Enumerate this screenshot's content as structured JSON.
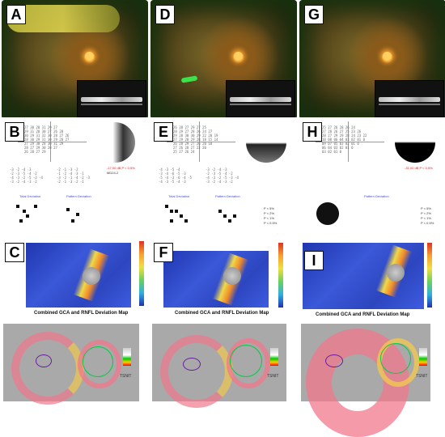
{
  "panels": [
    {
      "id": "A",
      "label": "A"
    },
    {
      "id": "D",
      "label": "D"
    },
    {
      "id": "G",
      "label": "G"
    },
    {
      "id": "B",
      "label": "B"
    },
    {
      "id": "E",
      "label": "E"
    },
    {
      "id": "H",
      "label": "H"
    },
    {
      "id": "C",
      "label": "C"
    },
    {
      "id": "F",
      "label": "F"
    },
    {
      "id": "I",
      "label": "I"
    }
  ],
  "map_caption": "Combined GCA and RNFL Deviation Map",
  "colorbar": {
    "top": "300",
    "mid": "150",
    "bottom": "0",
    "unit": "µm"
  },
  "vf_text": {
    "total_dev": "Total Deviation",
    "pattern_dev": "Pattern Deviation",
    "legend": [
      "P < 5%",
      "P < 2%",
      "P < 1%",
      "P < 0.5%"
    ]
  },
  "tsnit": {
    "scale": [
      "µm",
      "200",
      "100",
      "0"
    ],
    "label": "TSNIT"
  },
  "colors": {
    "fundus_green": "#3be24a",
    "map_blue": "#2d46c0",
    "band_pink": "#f0788c"
  }
}
